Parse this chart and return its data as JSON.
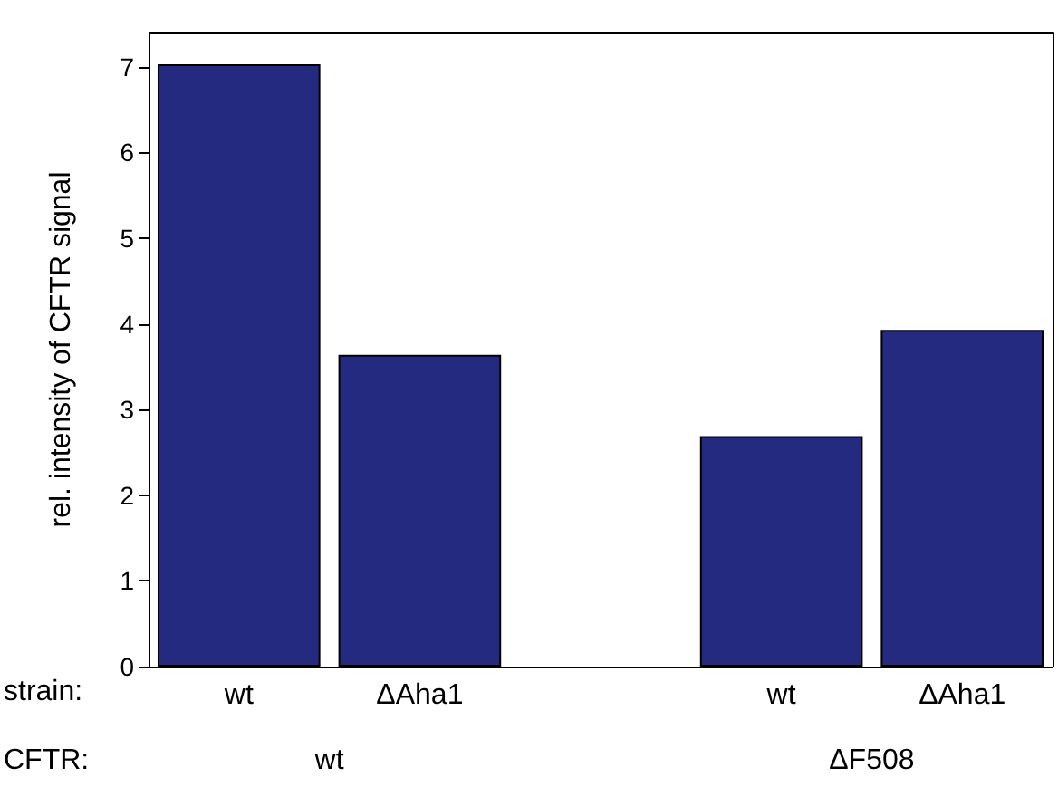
{
  "chart_data": {
    "type": "bar",
    "ylabel": "rel. intensity of CFTR signal",
    "categories": [
      "wt",
      "ΔAha1",
      null,
      "wt",
      "ΔAha1"
    ],
    "values": [
      7.03,
      3.64,
      null,
      2.69,
      3.93
    ],
    "color": "#232a80",
    "ylim": [
      0,
      7.4
    ],
    "yticks": [
      0,
      1,
      2,
      3,
      4,
      5,
      6,
      7
    ],
    "grid": false,
    "annotations": [
      "strain:",
      "CFTR:",
      "wt",
      "ΔF508"
    ]
  }
}
